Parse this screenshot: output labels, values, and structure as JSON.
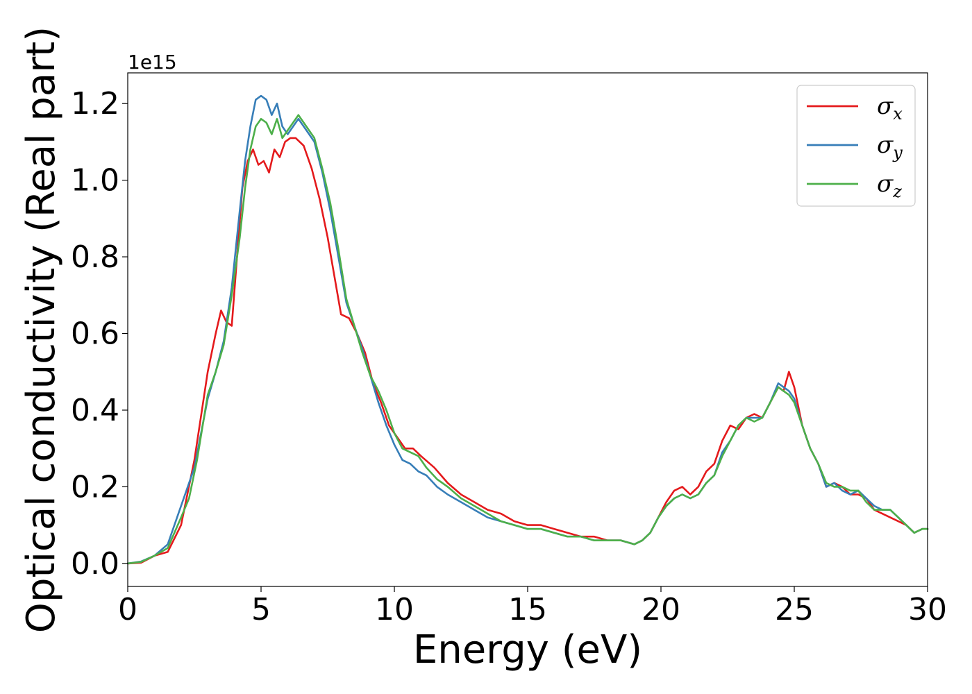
{
  "chart_data": {
    "type": "line",
    "xlabel": "Energy (eV)",
    "ylabel": "Optical conductivity (Real part)",
    "y_offset_text": "1e15",
    "y_scale": 1000000000000000.0,
    "xlim": [
      0,
      30
    ],
    "ylim": [
      -0.06,
      1.28
    ],
    "xticks": [
      0,
      5,
      10,
      15,
      20,
      25,
      30
    ],
    "xtick_labels": [
      "0",
      "5",
      "10",
      "15",
      "20",
      "25",
      "30"
    ],
    "yticks": [
      0.0,
      0.2,
      0.4,
      0.6,
      0.8,
      1.0,
      1.2
    ],
    "ytick_labels": [
      "0.0",
      "0.2",
      "0.4",
      "0.6",
      "0.8",
      "1.0",
      "1.2"
    ],
    "grid": false,
    "legend_position": "top-right",
    "series": [
      {
        "name": "σx",
        "symbol": "σ",
        "subscript": "x",
        "color": "#e41a1c",
        "x": [
          0,
          0.5,
          1.0,
          1.5,
          2.0,
          2.5,
          3.0,
          3.3,
          3.5,
          3.7,
          3.9,
          4.1,
          4.3,
          4.5,
          4.7,
          4.9,
          5.1,
          5.3,
          5.5,
          5.7,
          5.9,
          6.1,
          6.3,
          6.6,
          6.9,
          7.2,
          7.5,
          7.8,
          8.0,
          8.3,
          8.6,
          8.9,
          9.2,
          9.5,
          9.8,
          10.1,
          10.4,
          10.7,
          11.0,
          11.5,
          12.0,
          12.5,
          13.0,
          13.5,
          14.0,
          14.5,
          15.0,
          15.5,
          16.0,
          16.5,
          17.0,
          17.5,
          18.0,
          18.5,
          19.0,
          19.3,
          19.6,
          19.9,
          20.2,
          20.5,
          20.8,
          21.1,
          21.4,
          21.7,
          22.0,
          22.3,
          22.6,
          22.9,
          23.2,
          23.5,
          23.8,
          24.1,
          24.4,
          24.6,
          24.8,
          25.0,
          25.3,
          25.6,
          25.9,
          26.2,
          26.5,
          26.8,
          27.1,
          27.4,
          27.7,
          28.0,
          28.3,
          28.6,
          28.9,
          29.2,
          29.5,
          29.8,
          30.0
        ],
        "y": [
          0.0,
          0.002,
          0.02,
          0.03,
          0.1,
          0.27,
          0.5,
          0.6,
          0.66,
          0.63,
          0.62,
          0.8,
          0.98,
          1.05,
          1.08,
          1.04,
          1.05,
          1.02,
          1.08,
          1.06,
          1.1,
          1.11,
          1.11,
          1.09,
          1.03,
          0.95,
          0.85,
          0.73,
          0.65,
          0.64,
          0.6,
          0.55,
          0.47,
          0.42,
          0.36,
          0.33,
          0.3,
          0.3,
          0.28,
          0.25,
          0.21,
          0.18,
          0.16,
          0.14,
          0.13,
          0.11,
          0.1,
          0.1,
          0.09,
          0.08,
          0.07,
          0.07,
          0.06,
          0.06,
          0.05,
          0.06,
          0.08,
          0.12,
          0.16,
          0.19,
          0.2,
          0.18,
          0.2,
          0.24,
          0.26,
          0.32,
          0.36,
          0.35,
          0.38,
          0.39,
          0.38,
          0.42,
          0.46,
          0.45,
          0.5,
          0.46,
          0.36,
          0.3,
          0.26,
          0.2,
          0.21,
          0.2,
          0.18,
          0.18,
          0.17,
          0.14,
          0.13,
          0.12,
          0.11,
          0.1,
          0.08,
          0.09,
          0.09
        ]
      },
      {
        "name": "σy",
        "symbol": "σ",
        "subscript": "y",
        "color": "#377eb8",
        "x": [
          0,
          0.5,
          1.0,
          1.5,
          2.0,
          2.2,
          2.5,
          3.0,
          3.3,
          3.6,
          3.9,
          4.2,
          4.4,
          4.6,
          4.8,
          5.0,
          5.2,
          5.4,
          5.6,
          5.8,
          6.0,
          6.2,
          6.4,
          6.7,
          7.0,
          7.3,
          7.6,
          7.9,
          8.2,
          8.5,
          8.8,
          9.1,
          9.4,
          9.7,
          10.0,
          10.3,
          10.6,
          10.9,
          11.2,
          11.6,
          12.0,
          12.5,
          13.0,
          13.5,
          14.0,
          14.5,
          15.0,
          15.5,
          16.0,
          16.5,
          17.0,
          17.5,
          18.0,
          18.5,
          19.0,
          19.3,
          19.6,
          19.9,
          20.2,
          20.5,
          20.8,
          21.1,
          21.4,
          21.7,
          22.0,
          22.3,
          22.6,
          22.9,
          23.2,
          23.5,
          23.8,
          24.1,
          24.4,
          24.6,
          24.8,
          25.0,
          25.3,
          25.6,
          25.9,
          26.2,
          26.5,
          26.8,
          27.1,
          27.4,
          27.7,
          28.0,
          28.3,
          28.6,
          28.9,
          29.2,
          29.5,
          29.8,
          30.0
        ],
        "y": [
          0.0,
          0.005,
          0.02,
          0.05,
          0.15,
          0.19,
          0.25,
          0.43,
          0.5,
          0.58,
          0.72,
          0.92,
          1.05,
          1.14,
          1.21,
          1.22,
          1.21,
          1.17,
          1.2,
          1.14,
          1.12,
          1.14,
          1.16,
          1.13,
          1.1,
          1.02,
          0.92,
          0.8,
          0.68,
          0.62,
          0.56,
          0.49,
          0.42,
          0.36,
          0.31,
          0.27,
          0.26,
          0.24,
          0.23,
          0.2,
          0.18,
          0.16,
          0.14,
          0.12,
          0.11,
          0.1,
          0.09,
          0.09,
          0.08,
          0.07,
          0.07,
          0.06,
          0.06,
          0.06,
          0.05,
          0.06,
          0.08,
          0.12,
          0.15,
          0.17,
          0.18,
          0.17,
          0.18,
          0.21,
          0.23,
          0.29,
          0.32,
          0.36,
          0.38,
          0.38,
          0.38,
          0.42,
          0.47,
          0.46,
          0.45,
          0.43,
          0.36,
          0.3,
          0.26,
          0.2,
          0.21,
          0.19,
          0.18,
          0.19,
          0.17,
          0.15,
          0.14,
          0.14,
          0.12,
          0.1,
          0.08,
          0.09,
          0.09
        ]
      },
      {
        "name": "σz",
        "symbol": "σ",
        "subscript": "z",
        "color": "#4daf4a",
        "x": [
          0,
          0.5,
          1.0,
          1.5,
          2.0,
          2.3,
          2.6,
          3.0,
          3.3,
          3.6,
          3.9,
          4.2,
          4.4,
          4.6,
          4.8,
          5.0,
          5.2,
          5.4,
          5.6,
          5.8,
          6.0,
          6.2,
          6.4,
          6.7,
          7.0,
          7.3,
          7.6,
          7.9,
          8.2,
          8.5,
          8.8,
          9.1,
          9.4,
          9.7,
          10.0,
          10.3,
          10.6,
          10.9,
          11.2,
          11.6,
          12.0,
          12.5,
          13.0,
          13.5,
          14.0,
          14.5,
          15.0,
          15.5,
          16.0,
          16.5,
          17.0,
          17.5,
          18.0,
          18.5,
          19.0,
          19.3,
          19.6,
          19.9,
          20.2,
          20.5,
          20.8,
          21.1,
          21.4,
          21.7,
          22.0,
          22.3,
          22.6,
          22.9,
          23.2,
          23.5,
          23.8,
          24.1,
          24.4,
          24.6,
          24.8,
          25.0,
          25.3,
          25.6,
          25.9,
          26.2,
          26.5,
          26.8,
          27.1,
          27.4,
          27.7,
          28.0,
          28.3,
          28.6,
          28.9,
          29.2,
          29.5,
          29.8,
          30.0
        ],
        "y": [
          0.0,
          0.004,
          0.02,
          0.04,
          0.12,
          0.17,
          0.27,
          0.44,
          0.5,
          0.57,
          0.7,
          0.85,
          0.98,
          1.08,
          1.14,
          1.16,
          1.15,
          1.12,
          1.16,
          1.11,
          1.13,
          1.15,
          1.17,
          1.14,
          1.11,
          1.03,
          0.94,
          0.82,
          0.69,
          0.62,
          0.55,
          0.49,
          0.45,
          0.4,
          0.34,
          0.3,
          0.29,
          0.28,
          0.25,
          0.22,
          0.2,
          0.17,
          0.15,
          0.13,
          0.11,
          0.1,
          0.09,
          0.09,
          0.08,
          0.07,
          0.07,
          0.06,
          0.06,
          0.06,
          0.05,
          0.06,
          0.08,
          0.12,
          0.15,
          0.17,
          0.18,
          0.17,
          0.18,
          0.21,
          0.23,
          0.28,
          0.32,
          0.36,
          0.38,
          0.37,
          0.38,
          0.42,
          0.46,
          0.45,
          0.44,
          0.42,
          0.36,
          0.3,
          0.26,
          0.21,
          0.2,
          0.2,
          0.19,
          0.19,
          0.16,
          0.14,
          0.14,
          0.14,
          0.12,
          0.1,
          0.08,
          0.09,
          0.09
        ]
      }
    ]
  }
}
